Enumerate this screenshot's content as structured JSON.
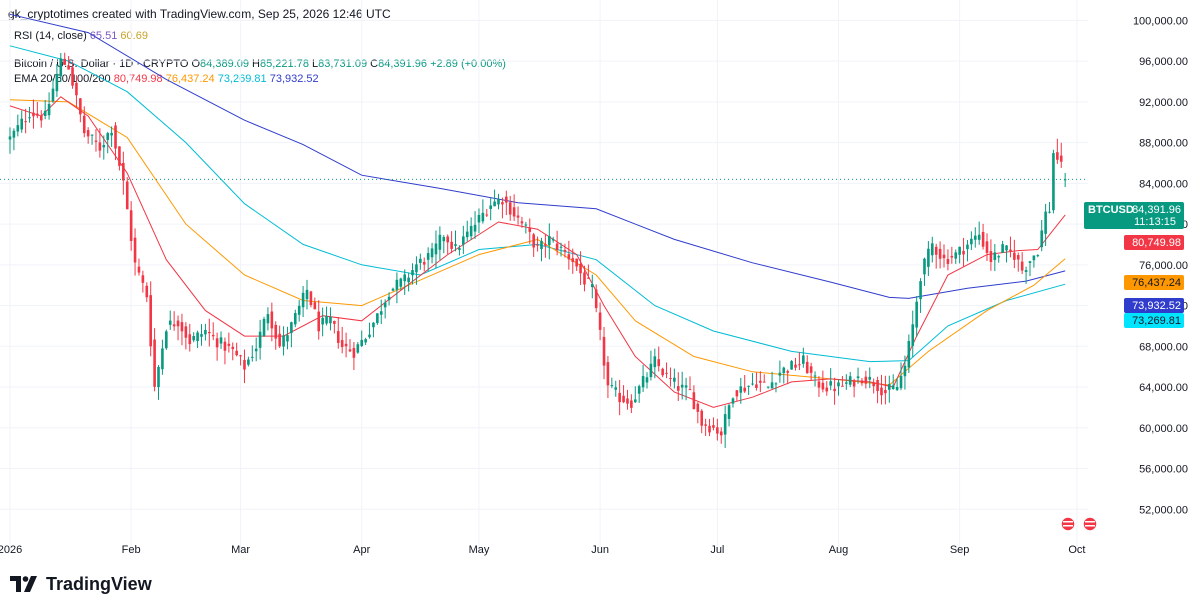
{
  "header": {
    "attribution": "gk_cryptotimes created with TradingView.com, Sep 25, 2026 12:46 UTC"
  },
  "rsi": {
    "label": "RSI (14, close)",
    "value_a": "65.51",
    "value_b": "60.69"
  },
  "legend": {
    "symbol": "Bitcoin / U.S. Dollar · 1D · CRYPTO",
    "open_label": "O",
    "open": "84,389.09",
    "high_label": "H",
    "high": "85,221.78",
    "low_label": "L",
    "low": "83,731.09",
    "close_label": "C",
    "close": "84,391.96",
    "change": "+2.89 (+0.00%)",
    "ema_label": "EMA 20/50/100/200",
    "ema20": "80,749.98",
    "ema50": "76,437.24",
    "ema100": "73,269.81",
    "ema200": "73,932.52"
  },
  "badges": {
    "price_ticker": "BTCUSD",
    "price_value": "84,391.96",
    "countdown": "11:13:15",
    "ema20": "80,749.98",
    "ema50": "76,437.24",
    "ema200": "73,932.52",
    "ema100": "73,269.81"
  },
  "footer": {
    "brand": "TradingView"
  },
  "colors": {
    "up": "#089981",
    "down": "#f23645",
    "ema20": "#f23645",
    "ema50": "#ff9800",
    "ema100": "#00bcd4",
    "ema200": "#2f3ccc"
  },
  "chart_data": {
    "type": "candlestick",
    "ylim": [
      48000,
      102000
    ],
    "y_ticks": [
      52000,
      56000,
      60000,
      64000,
      68000,
      72000,
      76000,
      80000,
      84000,
      88000,
      92000,
      96000,
      100000
    ],
    "y_tick_labels": [
      "52,000.00",
      "56,000.00",
      "60,000.00",
      "64,000.00",
      "68,000.00",
      "72,000.00",
      "76,000.00",
      "80,000.00",
      "84,000.00",
      "88,000.00",
      "92,000.00",
      "96,000.00",
      "100,000.00"
    ],
    "x_ticks": [
      {
        "day": 0,
        "label": "2026"
      },
      {
        "day": 31,
        "label": "Feb"
      },
      {
        "day": 59,
        "label": "Mar"
      },
      {
        "day": 90,
        "label": "Apr"
      },
      {
        "day": 120,
        "label": "May"
      },
      {
        "day": 151,
        "label": "Jun"
      },
      {
        "day": 181,
        "label": "Jul"
      },
      {
        "day": 212,
        "label": "Aug"
      },
      {
        "day": 243,
        "label": "Sep"
      },
      {
        "day": 273,
        "label": "Oct"
      }
    ],
    "last_price": 84391.96,
    "close_path": [
      [
        0,
        88400
      ],
      [
        5,
        91000
      ],
      [
        9,
        90500
      ],
      [
        13,
        96000
      ],
      [
        15,
        95500
      ],
      [
        19,
        89000
      ],
      [
        23,
        87500
      ],
      [
        26,
        89500
      ],
      [
        29,
        84000
      ],
      [
        32,
        76000
      ],
      [
        35,
        73000
      ],
      [
        37,
        64000
      ],
      [
        40,
        70000
      ],
      [
        43,
        70500
      ],
      [
        46,
        68500
      ],
      [
        50,
        69500
      ],
      [
        53,
        68500
      ],
      [
        57,
        67500
      ],
      [
        60,
        66000
      ],
      [
        63,
        68000
      ],
      [
        66,
        71500
      ],
      [
        69,
        68000
      ],
      [
        72,
        70000
      ],
      [
        76,
        73500
      ],
      [
        79,
        70000
      ],
      [
        82,
        70500
      ],
      [
        85,
        68000
      ],
      [
        88,
        67500
      ],
      [
        91,
        69000
      ],
      [
        94,
        71000
      ],
      [
        97,
        73500
      ],
      [
        101,
        74500
      ],
      [
        104,
        76000
      ],
      [
        108,
        77000
      ],
      [
        111,
        79000
      ],
      [
        114,
        77500
      ],
      [
        117,
        79000
      ],
      [
        120,
        80500
      ],
      [
        123,
        82000
      ],
      [
        126,
        82500
      ],
      [
        129,
        81000
      ],
      [
        132,
        79500
      ],
      [
        135,
        77500
      ],
      [
        138,
        78500
      ],
      [
        141,
        77500
      ],
      [
        144,
        76500
      ],
      [
        147,
        74500
      ],
      [
        149,
        73500
      ],
      [
        151,
        69000
      ],
      [
        153,
        64000
      ],
      [
        156,
        63000
      ],
      [
        159,
        62500
      ],
      [
        162,
        64500
      ],
      [
        165,
        66500
      ],
      [
        168,
        65000
      ],
      [
        171,
        64000
      ],
      [
        174,
        63500
      ],
      [
        177,
        60500
      ],
      [
        180,
        60000
      ],
      [
        182,
        59500
      ],
      [
        185,
        63500
      ],
      [
        188,
        64000
      ],
      [
        191,
        64500
      ],
      [
        194,
        64000
      ],
      [
        197,
        65500
      ],
      [
        200,
        66000
      ],
      [
        203,
        66500
      ],
      [
        206,
        64500
      ],
      [
        209,
        64000
      ],
      [
        212,
        64000
      ],
      [
        215,
        64500
      ],
      [
        218,
        65000
      ],
      [
        221,
        64500
      ],
      [
        224,
        63500
      ],
      [
        227,
        64000
      ],
      [
        229,
        66000
      ],
      [
        231,
        70000
      ],
      [
        233,
        75000
      ],
      [
        236,
        78000
      ],
      [
        239,
        76500
      ],
      [
        242,
        77000
      ],
      [
        245,
        78000
      ],
      [
        248,
        79000
      ],
      [
        251,
        76500
      ],
      [
        254,
        77500
      ],
      [
        257,
        77000
      ],
      [
        259,
        75500
      ],
      [
        261,
        76500
      ],
      [
        263,
        77500
      ],
      [
        265,
        81000
      ],
      [
        266,
        81500
      ],
      [
        267,
        87000
      ],
      [
        268,
        86500
      ],
      [
        269,
        85500
      ],
      [
        270,
        84400
      ]
    ],
    "ema_series": [
      {
        "key": "ema200",
        "points": [
          [
            0,
            100600
          ],
          [
            20,
            98800
          ],
          [
            40,
            94200
          ],
          [
            60,
            90200
          ],
          [
            75,
            87800
          ],
          [
            90,
            84800
          ],
          [
            110,
            83500
          ],
          [
            130,
            82100
          ],
          [
            150,
            81500
          ],
          [
            170,
            78500
          ],
          [
            190,
            76200
          ],
          [
            210,
            74300
          ],
          [
            225,
            72800
          ],
          [
            230,
            72700
          ],
          [
            245,
            73700
          ],
          [
            260,
            74400
          ],
          [
            270,
            75400
          ]
        ]
      },
      {
        "key": "ema100",
        "points": [
          [
            0,
            97500
          ],
          [
            15,
            96000
          ],
          [
            30,
            93000
          ],
          [
            45,
            88000
          ],
          [
            60,
            82000
          ],
          [
            75,
            78000
          ],
          [
            90,
            76000
          ],
          [
            105,
            75000
          ],
          [
            120,
            77500
          ],
          [
            135,
            78000
          ],
          [
            150,
            76500
          ],
          [
            165,
            72000
          ],
          [
            180,
            69500
          ],
          [
            200,
            67500
          ],
          [
            220,
            66500
          ],
          [
            230,
            66600
          ],
          [
            240,
            70000
          ],
          [
            255,
            72500
          ],
          [
            270,
            74100
          ]
        ]
      },
      {
        "key": "ema50",
        "points": [
          [
            0,
            92200
          ],
          [
            15,
            92000
          ],
          [
            30,
            88500
          ],
          [
            45,
            80000
          ],
          [
            60,
            75000
          ],
          [
            75,
            72500
          ],
          [
            90,
            72000
          ],
          [
            105,
            74500
          ],
          [
            120,
            77000
          ],
          [
            135,
            78500
          ],
          [
            150,
            75000
          ],
          [
            160,
            70500
          ],
          [
            175,
            67000
          ],
          [
            190,
            65500
          ],
          [
            210,
            64800
          ],
          [
            225,
            64200
          ],
          [
            235,
            67500
          ],
          [
            250,
            71500
          ],
          [
            262,
            74000
          ],
          [
            270,
            76600
          ]
        ]
      },
      {
        "key": "ema20",
        "points": [
          [
            0,
            91600
          ],
          [
            8,
            90600
          ],
          [
            13,
            92500
          ],
          [
            20,
            90600
          ],
          [
            30,
            85000
          ],
          [
            40,
            76500
          ],
          [
            50,
            71500
          ],
          [
            60,
            69000
          ],
          [
            70,
            69000
          ],
          [
            80,
            71000
          ],
          [
            90,
            70500
          ],
          [
            100,
            73500
          ],
          [
            112,
            77000
          ],
          [
            125,
            80200
          ],
          [
            135,
            79500
          ],
          [
            145,
            77000
          ],
          [
            152,
            72000
          ],
          [
            160,
            67000
          ],
          [
            170,
            63500
          ],
          [
            180,
            62000
          ],
          [
            190,
            63000
          ],
          [
            200,
            64500
          ],
          [
            210,
            64800
          ],
          [
            220,
            64500
          ],
          [
            226,
            64000
          ],
          [
            232,
            69000
          ],
          [
            240,
            75000
          ],
          [
            250,
            77000
          ],
          [
            258,
            77400
          ],
          [
            263,
            77500
          ],
          [
            270,
            80900
          ]
        ]
      }
    ]
  }
}
